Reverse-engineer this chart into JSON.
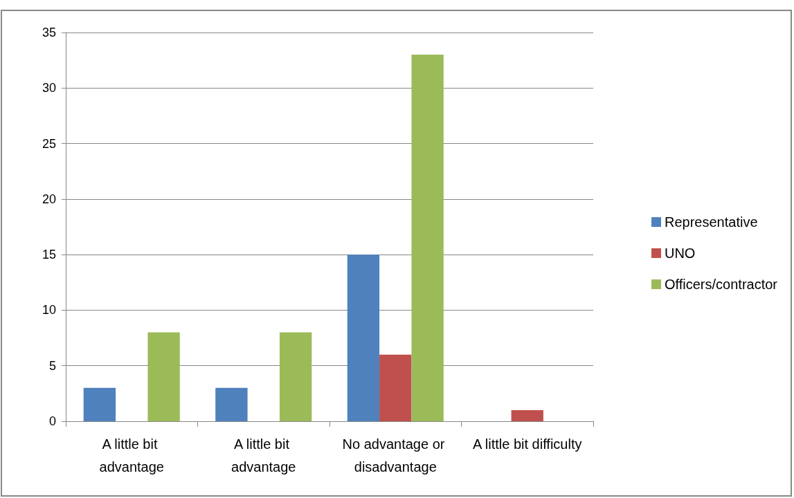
{
  "chart_data": {
    "type": "bar",
    "categories": [
      "A little bit advantage",
      "A little bit advantage",
      "No advantage or disadvantage",
      "A little bit difficulty"
    ],
    "series": [
      {
        "name": "Representative",
        "color": "#4f81bd",
        "values": [
          3,
          3,
          15,
          0
        ]
      },
      {
        "name": "UNO",
        "color": "#c0504d",
        "values": [
          0,
          0,
          6,
          1
        ]
      },
      {
        "name": "Officers/contractor",
        "color": "#9bbb59",
        "values": [
          8,
          8,
          33,
          0
        ]
      }
    ],
    "ylim": [
      0,
      35
    ],
    "yticks": [
      0,
      5,
      10,
      15,
      20,
      25,
      30,
      35
    ],
    "grid": "y",
    "legend": "right"
  }
}
